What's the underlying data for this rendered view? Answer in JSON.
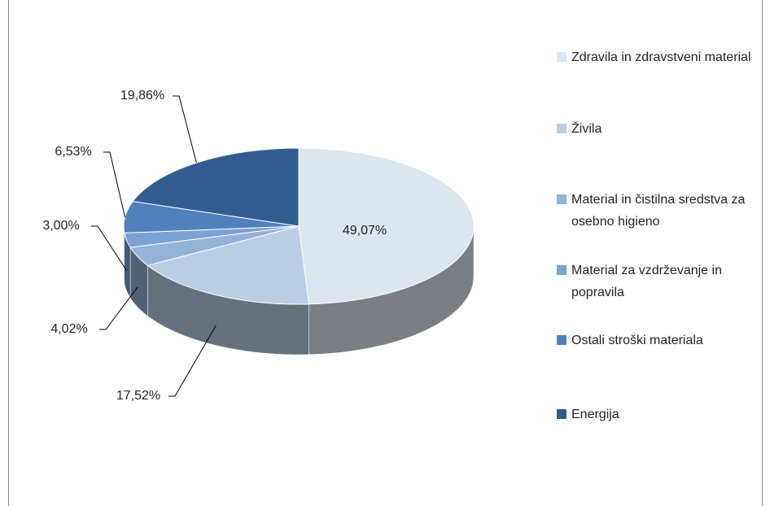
{
  "chart_data": {
    "type": "pie",
    "categories": [
      "Zdravila in zdravstveni material",
      "Živila",
      "Material in čistilna sredstva za osebno higieno",
      "Material za vzdrževanje in popravila",
      "Ostali stroški materiala",
      "Energija"
    ],
    "values": [
      49.07,
      17.52,
      4.02,
      3.0,
      6.53,
      19.86
    ],
    "value_labels": [
      "49,07%",
      "17,52%",
      "4,02%",
      "3,00%",
      "6,53%",
      "19,86%"
    ],
    "colors": [
      "#dce6f1",
      "#b9cde5",
      "#95b3d7",
      "#7ba2d3",
      "#4f81bd",
      "#335d91"
    ],
    "legend": "right"
  }
}
